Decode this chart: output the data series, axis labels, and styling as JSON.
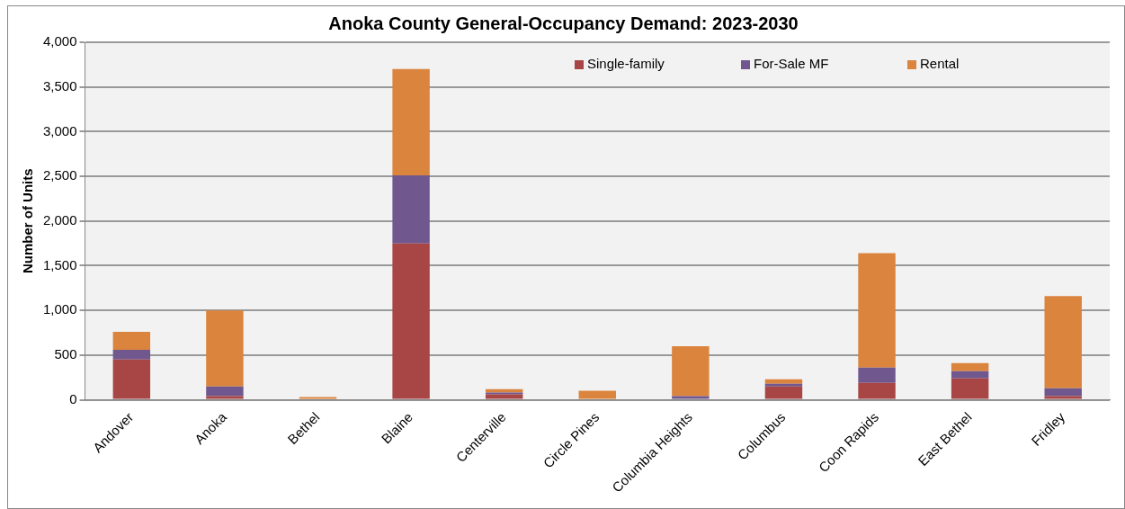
{
  "chart_data": {
    "type": "bar",
    "title": "Anoka County General-Occupancy Demand: 2023-2030",
    "ylabel": "Number of Units",
    "categories": [
      "Andover",
      "Anoka",
      "Bethel",
      "Blaine",
      "Centerville",
      "Circle Pines",
      "Columbia Heights",
      "Columbus",
      "Coon Rapids",
      "East Bethel",
      "Fridley"
    ],
    "series": [
      {
        "name": "Single-family",
        "color": "#a84545",
        "values": [
          450,
          40,
          10,
          1750,
          60,
          0,
          0,
          150,
          190,
          240,
          40
        ]
      },
      {
        "name": "For-Sale MF",
        "color": "#70588f",
        "values": [
          110,
          110,
          0,
          760,
          20,
          0,
          40,
          30,
          170,
          80,
          90
        ]
      },
      {
        "name": "Rental",
        "color": "#db843d",
        "values": [
          200,
          850,
          20,
          1190,
          40,
          100,
          560,
          50,
          1280,
          90,
          1030
        ]
      }
    ],
    "stacked": true,
    "ylim": [
      0,
      4000
    ],
    "yticks": [
      0,
      500,
      {
        "value": 1000,
        "label": "1,000"
      },
      {
        "value": 1500,
        "label": "1,500"
      },
      {
        "value": 2000,
        "label": "2,000"
      },
      {
        "value": 2500,
        "label": "2,500"
      },
      {
        "value": 3000,
        "label": "3,000"
      },
      {
        "value": 3500,
        "label": "3,500"
      },
      {
        "value": 4000,
        "label": "4,000"
      }
    ],
    "grid": "y",
    "legend": "top right"
  }
}
